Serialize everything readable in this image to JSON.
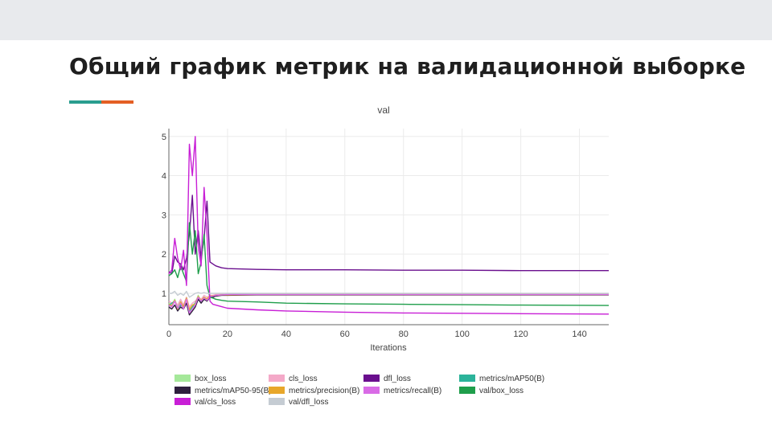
{
  "slide": {
    "title": "Общий график метрик на валидационной выборке",
    "accent_colors": [
      "#2a9d8f",
      "#e45f24"
    ],
    "band_color": "#e8eaed"
  },
  "chart_data": {
    "type": "line",
    "title": "val",
    "xlabel": "Iterations",
    "ylabel": "",
    "xlim": [
      0,
      150
    ],
    "ylim": [
      0.2,
      5.2
    ],
    "xticks": [
      0,
      20,
      40,
      60,
      80,
      100,
      120,
      140
    ],
    "yticks": [
      1,
      2,
      3,
      4,
      5
    ],
    "grid": true,
    "legend_position": "bottom",
    "series": [
      {
        "name": "box_loss",
        "color": "#a5e89a",
        "x": [
          0,
          1,
          2,
          3,
          4,
          5,
          6,
          7,
          8,
          9,
          10,
          11,
          12,
          13,
          14,
          15,
          16,
          18,
          20,
          25,
          30,
          40,
          60,
          80,
          100,
          120,
          150
        ],
        "y": [
          0.75,
          0.7,
          0.85,
          0.65,
          0.8,
          0.7,
          0.9,
          0.6,
          0.7,
          0.75,
          0.95,
          0.8,
          0.9,
          0.85,
          0.95,
          0.9,
          0.95,
          0.95,
          0.96,
          0.97,
          0.97,
          0.97,
          0.97,
          0.98,
          0.98,
          0.98,
          0.98
        ]
      },
      {
        "name": "cls_loss",
        "color": "#f4a9c8",
        "x": [
          0,
          1,
          2,
          3,
          4,
          5,
          6,
          7,
          8,
          9,
          10,
          11,
          12,
          13,
          14,
          15,
          16,
          18,
          20,
          30,
          60,
          100,
          150
        ],
        "y": [
          0.8,
          0.75,
          0.8,
          0.7,
          0.85,
          0.7,
          0.9,
          0.65,
          0.75,
          0.8,
          0.9,
          0.85,
          0.95,
          0.9,
          0.95,
          0.95,
          0.97,
          0.98,
          0.98,
          0.98,
          0.99,
          0.99,
          0.99
        ]
      },
      {
        "name": "dfl_loss",
        "color": "#6a0f8e",
        "x": [
          0,
          1,
          2,
          3,
          4,
          5,
          6,
          7,
          8,
          9,
          10,
          11,
          12,
          13,
          14,
          15,
          16,
          18,
          20,
          25,
          30,
          40,
          60,
          80,
          100,
          120,
          150
        ],
        "y": [
          1.55,
          1.5,
          1.95,
          1.8,
          1.75,
          1.6,
          1.9,
          2.5,
          3.5,
          2.0,
          2.6,
          1.9,
          2.4,
          3.35,
          1.8,
          1.75,
          1.7,
          1.65,
          1.63,
          1.62,
          1.61,
          1.6,
          1.6,
          1.59,
          1.59,
          1.58,
          1.58
        ]
      },
      {
        "name": "metrics/mAP50(B)",
        "color": "#2bb39a",
        "x": [
          0,
          1,
          2,
          3,
          4,
          5,
          6,
          7,
          8,
          9,
          10,
          11,
          12,
          13,
          14,
          15,
          16,
          18,
          20,
          30,
          60,
          100,
          150
        ],
        "y": [
          0.7,
          0.75,
          0.8,
          0.6,
          0.7,
          0.65,
          0.85,
          0.55,
          0.65,
          0.75,
          0.9,
          0.8,
          0.9,
          0.85,
          0.92,
          0.93,
          0.95,
          0.96,
          0.97,
          0.97,
          0.97,
          0.97,
          0.97
        ]
      },
      {
        "name": "metrics/mAP50-95(B)",
        "color": "#2e1f3d",
        "x": [
          0,
          1,
          2,
          3,
          4,
          5,
          6,
          7,
          8,
          9,
          10,
          11,
          12,
          13,
          14,
          15,
          16,
          18,
          20,
          30,
          60,
          100,
          150
        ],
        "y": [
          0.65,
          0.6,
          0.7,
          0.55,
          0.65,
          0.6,
          0.75,
          0.45,
          0.55,
          0.65,
          0.85,
          0.75,
          0.85,
          0.8,
          0.9,
          0.9,
          0.93,
          0.95,
          0.95,
          0.96,
          0.96,
          0.96,
          0.96
        ]
      },
      {
        "name": "metrics/precision(B)",
        "color": "#e8a72b",
        "x": [
          0,
          1,
          2,
          3,
          4,
          5,
          6,
          7,
          8,
          9,
          10,
          11,
          12,
          13,
          14,
          15,
          16,
          18,
          20,
          30,
          60,
          100,
          150
        ],
        "y": [
          0.72,
          0.68,
          0.82,
          0.6,
          0.78,
          0.66,
          0.88,
          0.58,
          0.7,
          0.72,
          0.92,
          0.82,
          0.9,
          0.86,
          0.93,
          0.94,
          0.95,
          0.96,
          0.96,
          0.97,
          0.97,
          0.97,
          0.97
        ]
      },
      {
        "name": "metrics/recall(B)",
        "color": "#d96be6",
        "x": [
          0,
          1,
          2,
          3,
          4,
          5,
          6,
          7,
          8,
          9,
          10,
          11,
          12,
          13,
          14,
          15,
          16,
          18,
          20,
          30,
          60,
          100,
          150
        ],
        "y": [
          0.7,
          0.65,
          0.8,
          0.62,
          0.75,
          0.6,
          0.85,
          0.5,
          0.6,
          0.7,
          0.9,
          0.8,
          0.88,
          0.82,
          0.92,
          0.93,
          0.95,
          0.96,
          0.97,
          0.97,
          0.97,
          0.97,
          0.97
        ]
      },
      {
        "name": "val/box_loss",
        "color": "#1f9e4b",
        "x": [
          0,
          1,
          2,
          3,
          4,
          5,
          6,
          7,
          8,
          9,
          10,
          11,
          12,
          13,
          14,
          15,
          16,
          18,
          20,
          25,
          30,
          40,
          60,
          80,
          100,
          120,
          150
        ],
        "y": [
          1.45,
          1.5,
          1.6,
          1.4,
          1.7,
          1.5,
          1.3,
          2.8,
          2.0,
          2.6,
          1.5,
          1.8,
          2.5,
          1.2,
          0.9,
          0.88,
          0.85,
          0.82,
          0.8,
          0.79,
          0.78,
          0.75,
          0.73,
          0.72,
          0.71,
          0.7,
          0.69
        ]
      },
      {
        "name": "val/cls_loss",
        "color": "#c81fd6",
        "x": [
          0,
          1,
          2,
          3,
          4,
          5,
          6,
          7,
          8,
          9,
          10,
          11,
          12,
          13,
          14,
          15,
          16,
          18,
          20,
          25,
          30,
          40,
          60,
          80,
          100,
          120,
          150
        ],
        "y": [
          1.5,
          1.6,
          2.4,
          1.9,
          1.6,
          2.1,
          1.2,
          4.8,
          4.0,
          5.0,
          2.2,
          1.7,
          3.7,
          2.5,
          0.8,
          0.72,
          0.7,
          0.66,
          0.62,
          0.6,
          0.58,
          0.55,
          0.52,
          0.5,
          0.49,
          0.48,
          0.47
        ]
      },
      {
        "name": "val/dfl_loss",
        "color": "#c5ccd3",
        "x": [
          0,
          1,
          2,
          3,
          4,
          5,
          6,
          7,
          8,
          9,
          10,
          11,
          12,
          13,
          14,
          15,
          16,
          18,
          20,
          30,
          60,
          100,
          150
        ],
        "y": [
          1.0,
          1.0,
          1.05,
          0.95,
          1.0,
          0.95,
          1.05,
          0.9,
          0.95,
          1.0,
          1.02,
          1.0,
          1.02,
          1.0,
          1.0,
          1.0,
          1.0,
          1.0,
          1.0,
          1.0,
          1.0,
          1.0,
          1.0
        ]
      }
    ]
  }
}
